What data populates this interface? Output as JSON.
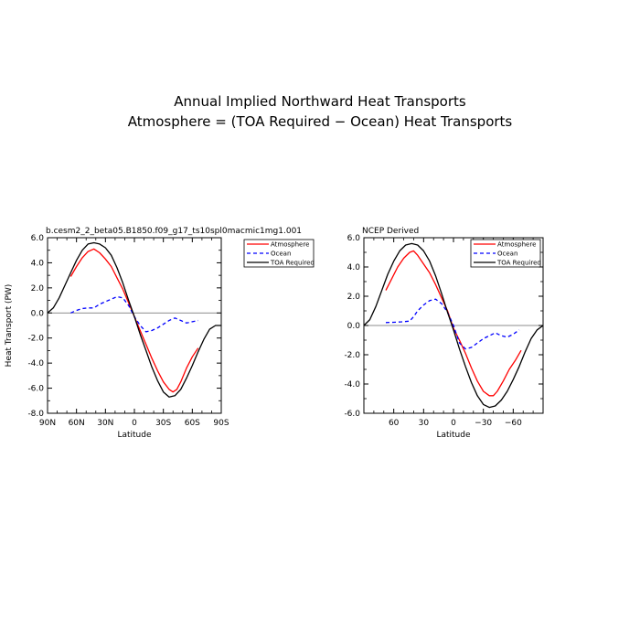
{
  "figure": {
    "title_line1": "Annual Implied Northward Heat Transports",
    "title_line2": "Atmosphere = (TOA Required − Ocean) Heat Transports"
  },
  "chart_data": [
    {
      "type": "line",
      "title": "b.cesm2_2_beta05.B1850.f09_g17_ts10spl0macmic1mg1.001",
      "xlabel": "Latitude",
      "ylabel": "Heat Transport (PW)",
      "xlim": [
        90,
        -90
      ],
      "ylim": [
        -8,
        6
      ],
      "xticks": [
        {
          "value": 90,
          "label": "90N"
        },
        {
          "value": 60,
          "label": "60N"
        },
        {
          "value": 30,
          "label": "30N"
        },
        {
          "value": 0,
          "label": "0"
        },
        {
          "value": -30,
          "label": "30S"
        },
        {
          "value": -60,
          "label": "60S"
        },
        {
          "value": -90,
          "label": "90S"
        }
      ],
      "yticks": [
        {
          "value": 6,
          "label": "6.0"
        },
        {
          "value": 4,
          "label": "4.0"
        },
        {
          "value": 2,
          "label": "2.0"
        },
        {
          "value": 0,
          "label": "0.0"
        },
        {
          "value": -2,
          "label": "-2.0"
        },
        {
          "value": -4,
          "label": "-4.0"
        },
        {
          "value": -6,
          "label": "-6.0"
        },
        {
          "value": -8,
          "label": "-8.0"
        }
      ],
      "zero_line": true,
      "legend": "top-right outside",
      "series": [
        {
          "name": "Atmosphere",
          "color": "#ff0000",
          "dash": "solid",
          "x": [
            66,
            60,
            54,
            48,
            42,
            36,
            30,
            24,
            18,
            12,
            6,
            0,
            -6,
            -12,
            -18,
            -24,
            -30,
            -36,
            -40,
            -44,
            -48,
            -54,
            -60,
            -66
          ],
          "y": [
            2.9,
            3.7,
            4.4,
            4.9,
            5.1,
            4.8,
            4.3,
            3.7,
            2.8,
            1.9,
            0.8,
            -0.3,
            -1.4,
            -2.5,
            -3.6,
            -4.6,
            -5.5,
            -6.1,
            -6.3,
            -6.1,
            -5.5,
            -4.4,
            -3.5,
            -2.8
          ]
        },
        {
          "name": "Ocean",
          "color": "#0000ff",
          "dash": "dashed",
          "x": [
            66,
            60,
            54,
            48,
            42,
            36,
            30,
            24,
            18,
            12,
            6,
            0,
            -6,
            -12,
            -18,
            -24,
            -30,
            -36,
            -42,
            -48,
            -54,
            -60,
            -66
          ],
          "y": [
            0.0,
            0.2,
            0.35,
            0.4,
            0.4,
            0.7,
            0.9,
            1.1,
            1.3,
            1.2,
            0.6,
            -0.3,
            -1.0,
            -1.5,
            -1.4,
            -1.2,
            -0.9,
            -0.6,
            -0.4,
            -0.6,
            -0.8,
            -0.7,
            -0.6
          ]
        },
        {
          "name": "TOA Required",
          "color": "#000000",
          "dash": "solid",
          "x": [
            90,
            84,
            78,
            72,
            66,
            60,
            54,
            48,
            42,
            36,
            30,
            24,
            18,
            12,
            6,
            0,
            -6,
            -12,
            -18,
            -24,
            -30,
            -36,
            -42,
            -48,
            -54,
            -60,
            -66,
            -72,
            -78,
            -84,
            -90
          ],
          "y": [
            0.0,
            0.4,
            1.2,
            2.2,
            3.2,
            4.2,
            5.0,
            5.5,
            5.6,
            5.5,
            5.2,
            4.6,
            3.6,
            2.4,
            1.0,
            -0.3,
            -1.7,
            -3.0,
            -4.3,
            -5.4,
            -6.3,
            -6.7,
            -6.6,
            -6.1,
            -5.2,
            -4.2,
            -3.1,
            -2.1,
            -1.3,
            -1.0,
            -1.0
          ]
        }
      ]
    },
    {
      "type": "line",
      "title": "NCEP Derived",
      "xlabel": "Latitude",
      "ylabel": "",
      "xlim": [
        90,
        -90
      ],
      "ylim": [
        -6,
        6
      ],
      "xticks": [
        {
          "value": 60,
          "label": "60"
        },
        {
          "value": 30,
          "label": "30"
        },
        {
          "value": 0,
          "label": "0"
        },
        {
          "value": -30,
          "label": "−30"
        },
        {
          "value": -60,
          "label": "−60"
        }
      ],
      "yticks": [
        {
          "value": 6,
          "label": "6.0"
        },
        {
          "value": 4,
          "label": "4.0"
        },
        {
          "value": 2,
          "label": "2.0"
        },
        {
          "value": 0,
          "label": "0.0"
        },
        {
          "value": -2,
          "label": "-2.0"
        },
        {
          "value": -4,
          "label": "-4.0"
        },
        {
          "value": -6,
          "label": "-6.0"
        }
      ],
      "zero_line": true,
      "legend": "top-right inside",
      "series": [
        {
          "name": "Atmosphere",
          "color": "#ff0000",
          "dash": "solid",
          "x": [
            68,
            62,
            56,
            50,
            44,
            40,
            36,
            30,
            24,
            18,
            12,
            6,
            0,
            -6,
            -12,
            -18,
            -24,
            -30,
            -36,
            -40,
            -44,
            -50,
            -56,
            -62,
            -68
          ],
          "y": [
            2.4,
            3.2,
            4.0,
            4.6,
            5.0,
            5.1,
            4.8,
            4.2,
            3.6,
            2.8,
            1.9,
            1.0,
            -0.2,
            -1.0,
            -1.9,
            -2.9,
            -3.8,
            -4.5,
            -4.8,
            -4.8,
            -4.5,
            -3.8,
            -3.0,
            -2.4,
            -1.7
          ]
        },
        {
          "name": "Ocean",
          "color": "#0000ff",
          "dash": "dashed",
          "x": [
            68,
            60,
            52,
            44,
            40,
            36,
            30,
            24,
            18,
            12,
            6,
            0,
            -6,
            -12,
            -18,
            -24,
            -30,
            -36,
            -42,
            -48,
            -54,
            -60,
            -66
          ],
          "y": [
            0.2,
            0.22,
            0.25,
            0.3,
            0.6,
            1.0,
            1.4,
            1.7,
            1.8,
            1.5,
            0.9,
            0.0,
            -1.2,
            -1.6,
            -1.5,
            -1.2,
            -0.9,
            -0.7,
            -0.5,
            -0.7,
            -0.8,
            -0.6,
            -0.3
          ]
        },
        {
          "name": "TOA Required",
          "color": "#000000",
          "dash": "solid",
          "x": [
            90,
            84,
            78,
            72,
            66,
            60,
            54,
            48,
            42,
            36,
            30,
            24,
            18,
            12,
            6,
            0,
            -6,
            -12,
            -18,
            -24,
            -30,
            -36,
            -42,
            -48,
            -54,
            -60,
            -66,
            -72,
            -78,
            -84,
            -90
          ],
          "y": [
            0.0,
            0.4,
            1.3,
            2.4,
            3.5,
            4.4,
            5.1,
            5.5,
            5.6,
            5.5,
            5.1,
            4.4,
            3.4,
            2.2,
            0.9,
            -0.3,
            -1.6,
            -2.8,
            -3.9,
            -4.8,
            -5.4,
            -5.6,
            -5.5,
            -5.1,
            -4.5,
            -3.7,
            -2.8,
            -1.8,
            -0.9,
            -0.3,
            0.0
          ]
        }
      ]
    }
  ]
}
